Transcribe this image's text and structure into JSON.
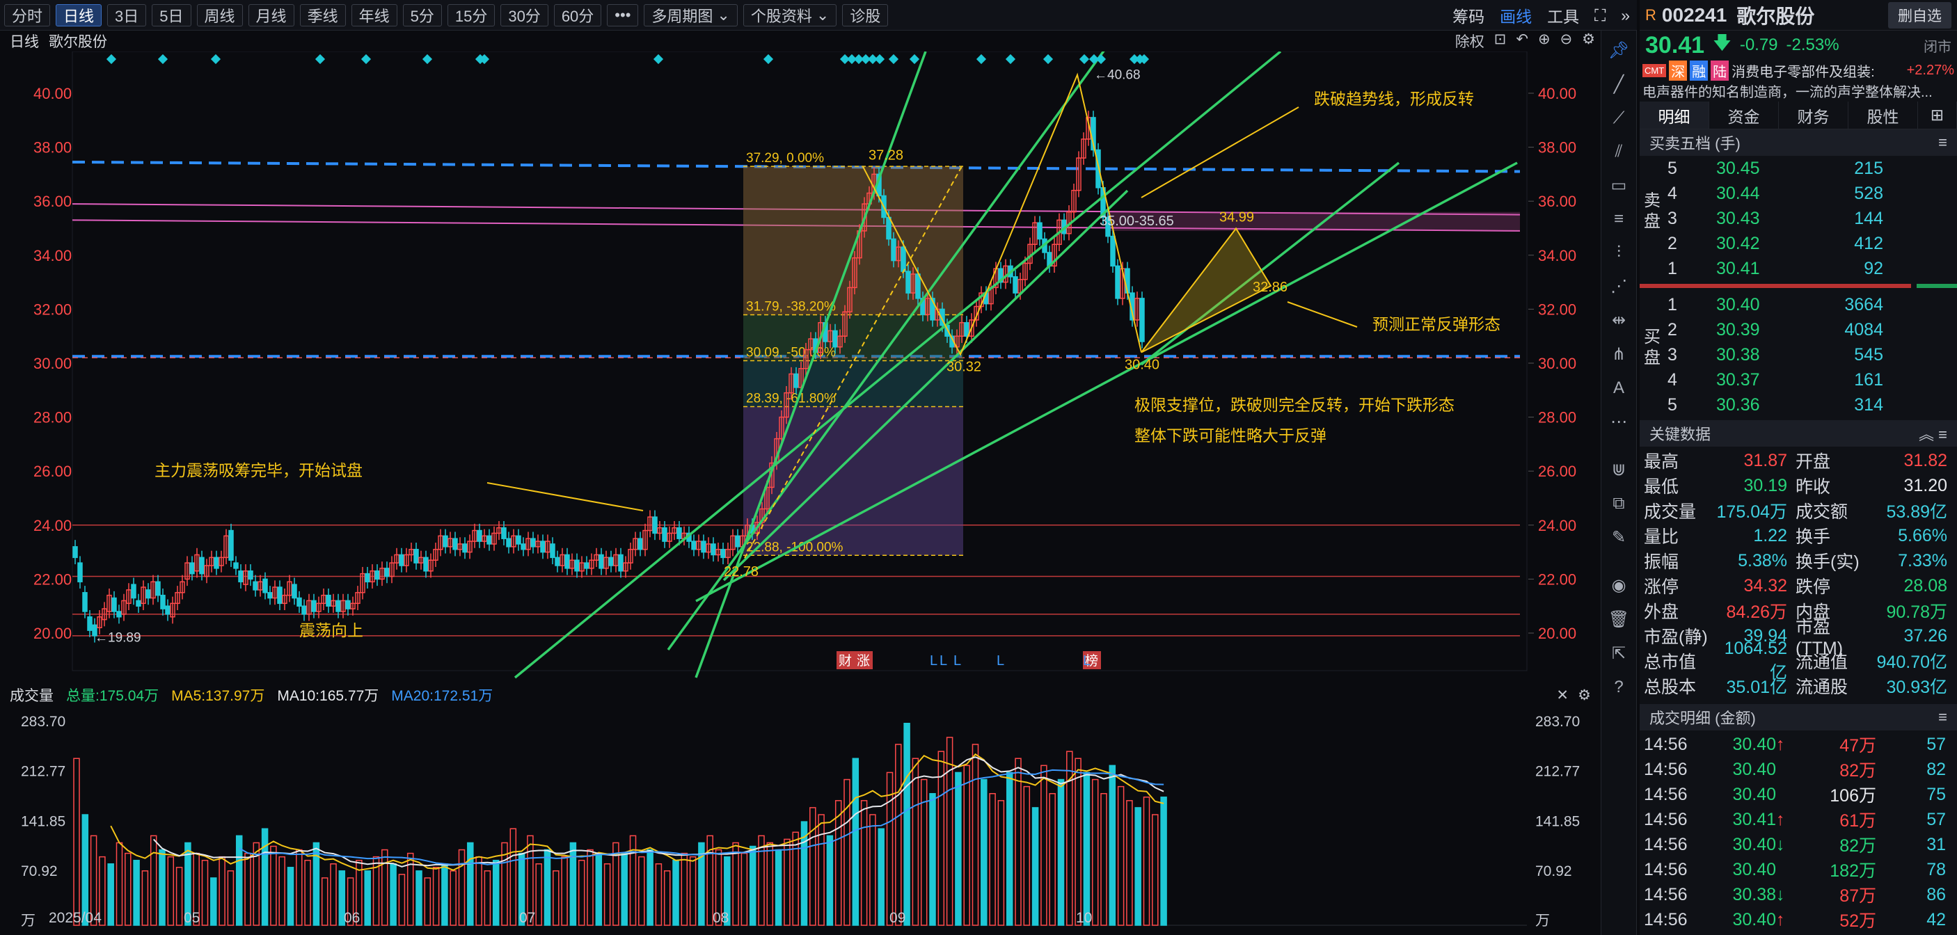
{
  "toolbar": {
    "periods": [
      "分时",
      "日线",
      "3日",
      "5日",
      "周线",
      "月线",
      "季线",
      "年线",
      "5分",
      "15分",
      "30分",
      "60分"
    ],
    "active": "日线",
    "more": "•••",
    "multi": "多周期图",
    "info": "个股资料",
    "diag": "诊股",
    "right": {
      "chips": "筹码",
      "draw": "画线",
      "tools": "工具"
    }
  },
  "chart": {
    "kind": "日线",
    "name": "歌尔股份",
    "controls": {
      "adjust": "除权"
    },
    "y_ticks": [
      "40.00",
      "38.00",
      "36.00",
      "34.00",
      "32.00",
      "30.00",
      "28.00",
      "26.00",
      "24.00",
      "22.00",
      "20.00"
    ],
    "x_ticks": [
      "2025/04",
      "05",
      "06",
      "07",
      "08",
      "09",
      "10"
    ],
    "annotations": {
      "high": "40.68",
      "low": "19.89",
      "p3728": "37.28",
      "p3032": "30.32",
      "p2278": "22.78",
      "range": "35.00-35.65",
      "p3499": "34.99",
      "p3286": "32.86",
      "p3040": "30.40",
      "fib0": "37.29, 0.00%",
      "fib1": "31.79, -38.20%",
      "fib2": "30.09, -50.00%",
      "fib3": "28.39, -61.80%",
      "fib4": "22.88, -100.00%",
      "t1": "跌破趋势线，形成反转",
      "t2": "预测正常反弹形态",
      "t3": "极限支撑位，跌破则完全反转，开始下跌形态",
      "t4": "整体下跌可能性略大于反弹",
      "t5": "主力震荡吸筹完毕，开始试盘",
      "t6": "震荡向上",
      "tag1": "财",
      "tag2": "涨",
      "tag3": "榜",
      "tagL": "L"
    }
  },
  "volume": {
    "title": "成交量",
    "total": "总量:175.04万",
    "ma5": "MA5:137.97万",
    "ma10": "MA10:165.77万",
    "ma20": "MA20:172.51万",
    "y_ticks": [
      "283.70",
      "212.77",
      "141.85",
      "70.92",
      "万"
    ]
  },
  "stock": {
    "prefix": "R",
    "code": "002241",
    "name": "歌尔股份",
    "action": "删自选",
    "price": "30.41",
    "chg": "-0.79",
    "pct": "-2.53%",
    "status": "闭市",
    "badges": [
      "CMT",
      "深",
      "融",
      "陆"
    ],
    "sector": "消费电子零部件及组装:",
    "sector_pct": "+2.27%",
    "desc": "电声器件的知名制造商，一流的声学整体解决..."
  },
  "tabs": [
    "明细",
    "资金",
    "财务",
    "股性"
  ],
  "orderbook": {
    "title": "买卖五档 (手)",
    "sell_label": "卖盘",
    "buy_label": "买盘",
    "sell": [
      {
        "lv": "5",
        "p": "30.45",
        "v": "215"
      },
      {
        "lv": "4",
        "p": "30.44",
        "v": "528"
      },
      {
        "lv": "3",
        "p": "30.43",
        "v": "144"
      },
      {
        "lv": "2",
        "p": "30.42",
        "v": "412"
      },
      {
        "lv": "1",
        "p": "30.41",
        "v": "92"
      }
    ],
    "buy": [
      {
        "lv": "1",
        "p": "30.40",
        "v": "3664"
      },
      {
        "lv": "2",
        "p": "30.39",
        "v": "4084"
      },
      {
        "lv": "3",
        "p": "30.38",
        "v": "545"
      },
      {
        "lv": "4",
        "p": "30.37",
        "v": "161"
      },
      {
        "lv": "5",
        "p": "30.36",
        "v": "314"
      }
    ]
  },
  "keydata": {
    "title": "关键数据",
    "rows": [
      [
        "最高",
        "31.87",
        "red",
        "开盘",
        "31.82",
        "red"
      ],
      [
        "最低",
        "30.19",
        "green",
        "昨收",
        "31.20",
        "white"
      ],
      [
        "成交量",
        "175.04万",
        "cyan",
        "成交额",
        "53.89亿",
        "cyan"
      ],
      [
        "量比",
        "1.22",
        "cyan",
        "换手",
        "5.66%",
        "cyan"
      ],
      [
        "振幅",
        "5.38%",
        "cyan",
        "换手(实)",
        "7.33%",
        "cyan"
      ],
      [
        "涨停",
        "34.32",
        "red",
        "跌停",
        "28.08",
        "green"
      ],
      [
        "外盘",
        "84.26万",
        "red",
        "内盘",
        "90.78万",
        "green"
      ],
      [
        "市盈(静)",
        "39.94",
        "cyan",
        "市盈(TTM)",
        "37.26",
        "cyan"
      ],
      [
        "总市值",
        "1064.52亿",
        "cyan",
        "流通值",
        "940.70亿",
        "cyan"
      ],
      [
        "总股本",
        "35.01亿",
        "cyan",
        "流通股",
        "30.93亿",
        "cyan"
      ]
    ]
  },
  "ticks": {
    "title": "成交明细 (金额)",
    "rows": [
      [
        "14:56",
        "30.40",
        "↑",
        "47万",
        "57",
        "red"
      ],
      [
        "14:56",
        "30.40",
        "",
        "82万",
        "82",
        "red"
      ],
      [
        "14:56",
        "30.40",
        "",
        "106万",
        "75",
        "white"
      ],
      [
        "14:56",
        "30.41",
        "↑",
        "61万",
        "57",
        "red"
      ],
      [
        "14:56",
        "30.40",
        "↓",
        "82万",
        "31",
        "green"
      ],
      [
        "14:56",
        "30.40",
        "",
        "182万",
        "78",
        "green"
      ],
      [
        "14:56",
        "30.38",
        "↓",
        "87万",
        "86",
        "red"
      ],
      [
        "14:56",
        "30.40",
        "↑",
        "52万",
        "42",
        "red"
      ]
    ]
  },
  "colors": {
    "up": "#ff4a4a",
    "down": "#1ec8d6",
    "accent": "#3d8bff"
  }
}
